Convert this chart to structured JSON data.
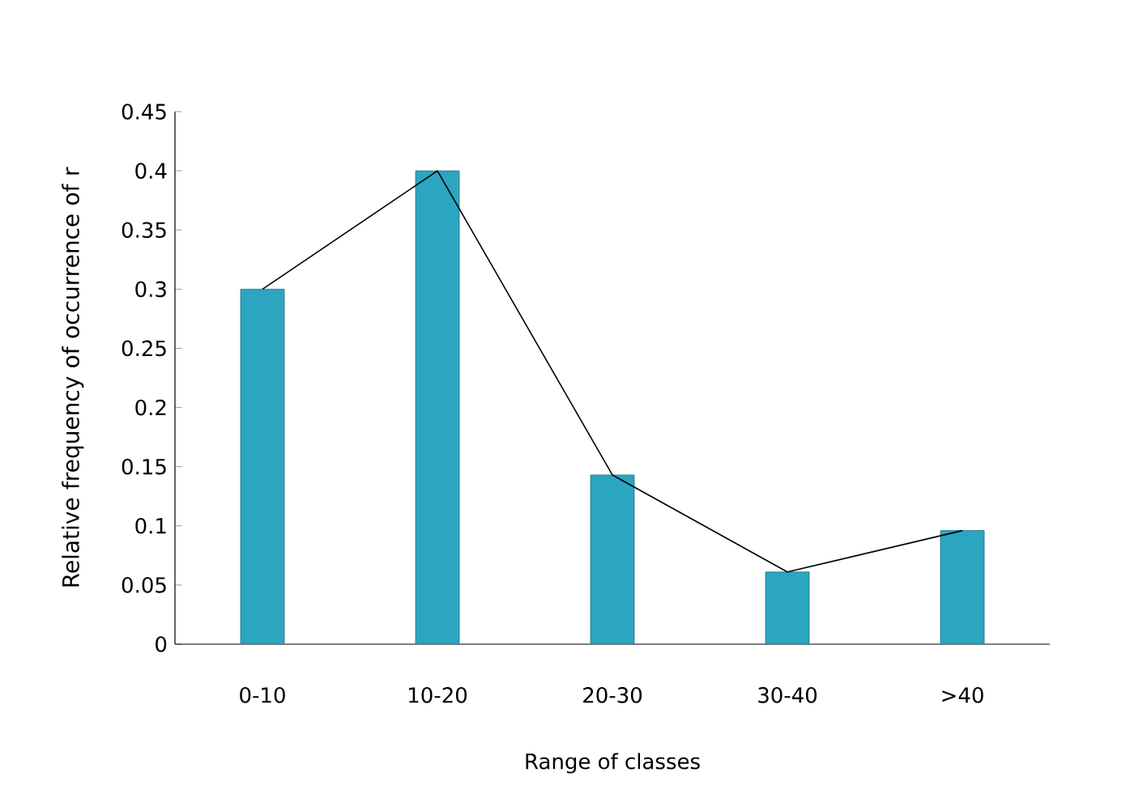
{
  "chart_data": {
    "type": "bar",
    "xlabel": "Range of classes",
    "ylabel": "Relative  frequency  of occurrence of  r",
    "categories": [
      "0-10",
      "10-20",
      "20-30",
      "30-40",
      ">40"
    ],
    "series": [
      {
        "color": "#2ca5c0",
        "values": [
          0.3,
          0.4,
          0.143,
          0.061,
          0.096
        ]
      },
      {
        "type": "line",
        "color": "#000000",
        "values": [
          0.3,
          0.4,
          0.143,
          0.061,
          0.096
        ]
      }
    ],
    "ylim": [
      0,
      0.45
    ],
    "yticks": [
      0,
      0.05,
      0.1,
      0.15,
      0.2,
      0.25,
      0.3,
      0.35,
      0.4,
      0.45
    ],
    "grid": false,
    "marker": "none",
    "line_style": "solid"
  }
}
